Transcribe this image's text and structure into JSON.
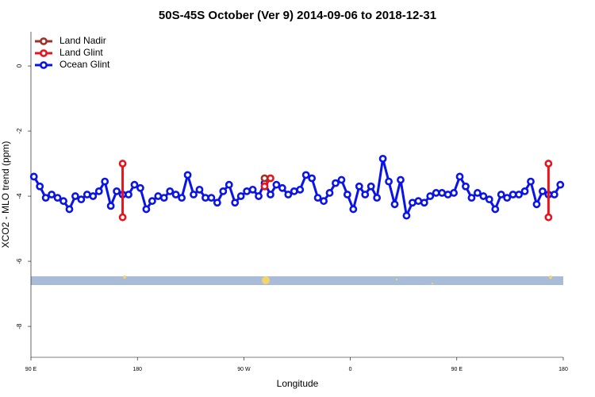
{
  "chart_data": {
    "type": "line",
    "title": "50S-45S October (Ver 9)   2014-09-06 to 2018-12-31",
    "x_label": "Longitude",
    "y_label": "XCO2 - MLO trend (ppm)",
    "xlim": [
      90,
      540
    ],
    "ylim": [
      -8.95,
      1.05
    ],
    "xticks": [
      {
        "value": 90,
        "label": "90 E"
      },
      180,
      {
        "value": 270,
        "label": "90 W"
      },
      {
        "value": 360,
        "label": "0"
      },
      {
        "value": 450,
        "label": "90 E"
      },
      {
        "value": 540,
        "label": "180"
      }
    ],
    "yticks": [
      0,
      -2,
      -4,
      -6,
      -8
    ],
    "legend": "top-left",
    "series": [
      {
        "name": "Land Nadir",
        "color": "#a0302a",
        "x": [
          287.5
        ],
        "values": [
          -3.45
        ]
      },
      {
        "name": "Land Glint",
        "color": "#e8141c",
        "x": [
          167.5,
          167.5,
          null,
          287.5,
          292.5,
          null,
          527.5,
          527.5
        ],
        "values": [
          -4.65,
          -3.0,
          null,
          -3.7,
          -3.45,
          null,
          -4.65,
          -3.0
        ]
      },
      {
        "name": "Ocean Glint",
        "color": "#0a14e6",
        "x": [
          92.5,
          97.5,
          102.5,
          107.5,
          112.5,
          117.5,
          122.5,
          127.5,
          132.5,
          137.5,
          142.5,
          147.5,
          152.5,
          157.5,
          162.5,
          167.5,
          172.5,
          177.5,
          182.5,
          187.5,
          192.5,
          197.5,
          202.5,
          207.5,
          212.5,
          217.5,
          222.5,
          227.5,
          232.5,
          237.5,
          242.5,
          247.5,
          252.5,
          257.5,
          262.5,
          267.5,
          272.5,
          277.5,
          282.5,
          287.5,
          292.5,
          297.5,
          302.5,
          307.5,
          312.5,
          317.5,
          322.5,
          327.5,
          332.5,
          337.5,
          342.5,
          347.5,
          352.5,
          357.5,
          362.5,
          367.5,
          372.5,
          377.5,
          382.5,
          387.5,
          392.5,
          397.5,
          402.5,
          407.5,
          412.5,
          417.5,
          422.5,
          427.5,
          432.5,
          437.5,
          442.5,
          447.5,
          452.5,
          457.5,
          462.5,
          467.5,
          472.5,
          477.5,
          482.5,
          487.5,
          492.5,
          497.5,
          502.5,
          507.5,
          512.5,
          517.5,
          522.5,
          527.5,
          532.5,
          537.5
        ],
        "values": [
          -3.4,
          -3.7,
          -4.05,
          -3.95,
          -4.05,
          -4.15,
          -4.4,
          -4.0,
          -4.1,
          -3.95,
          -4.0,
          -3.85,
          -3.55,
          -4.3,
          -3.85,
          -3.95,
          -3.95,
          -3.65,
          -3.75,
          -4.4,
          -4.15,
          -4.0,
          -4.05,
          -3.85,
          -3.95,
          -4.05,
          -3.35,
          -3.95,
          -3.8,
          -4.05,
          -4.05,
          -4.2,
          -3.85,
          -3.65,
          -4.2,
          -4.0,
          -3.85,
          -3.8,
          -4.0,
          -3.6,
          -3.95,
          -3.65,
          -3.75,
          -3.95,
          -3.85,
          -3.8,
          -3.35,
          -3.45,
          -4.05,
          -4.15,
          -3.9,
          -3.6,
          -3.5,
          -3.95,
          -4.4,
          -3.7,
          -3.95,
          -3.7,
          -4.05,
          -2.85,
          -3.55,
          -4.25,
          -3.5,
          -4.6,
          -4.2,
          -4.15,
          -4.2,
          -4.0,
          -3.9,
          -3.9,
          -3.95,
          -3.9,
          -3.4,
          -3.7,
          -4.05,
          -3.9,
          -4.0,
          -4.1,
          -4.4,
          -3.95,
          -4.05,
          -3.95,
          -3.95,
          -3.85,
          -3.55,
          -4.25,
          -3.85,
          -3.95,
          -3.95,
          -3.65
        ]
      }
    ]
  }
}
